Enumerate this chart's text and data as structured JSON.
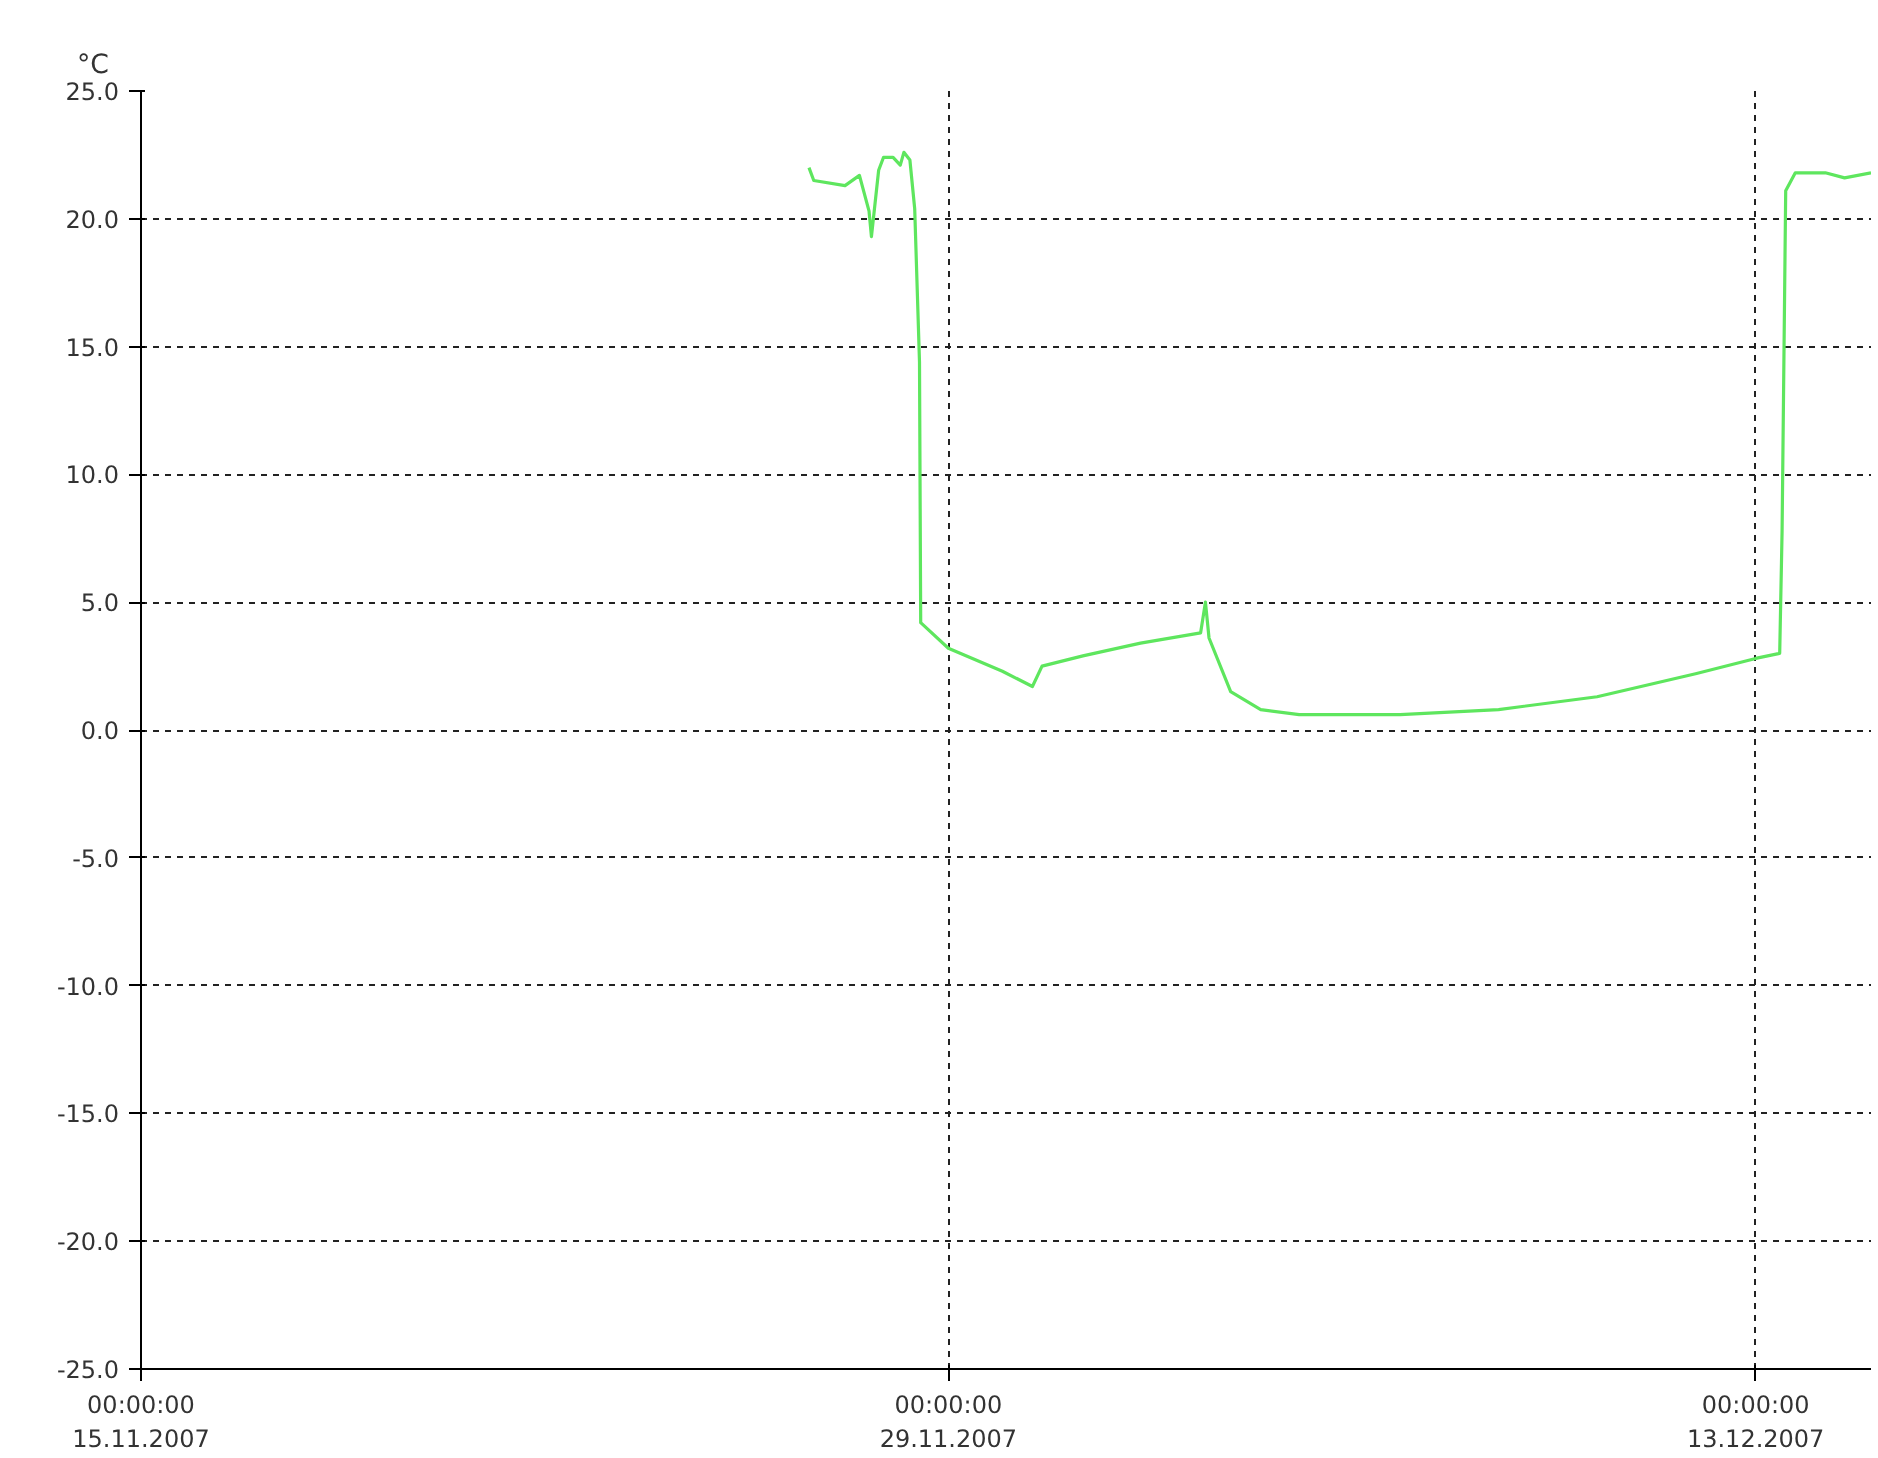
{
  "chart_data": {
    "type": "line",
    "ylabel": "°C",
    "x": [
      "2007-11-26T14:00",
      "2007-11-26T16:00",
      "2007-11-27T05:00",
      "2007-11-27T11:00",
      "2007-11-27T15:00",
      "2007-11-27T16:00",
      "2007-11-27T19:00",
      "2007-11-27T21:00",
      "2007-11-28T01:00",
      "2007-11-28T04:00",
      "2007-11-28T05:30",
      "2007-11-28T08:00",
      "2007-11-28T10:00",
      "2007-11-28T12:00",
      "2007-11-28T12:30",
      "2007-11-29T00:00",
      "2007-11-29T22:30",
      "2007-11-30T11:00",
      "2007-11-30T15:00",
      "2007-12-01T08:00",
      "2007-12-02T08:00",
      "2007-12-03T09:00",
      "2007-12-03T11:00",
      "2007-12-03T12:30",
      "2007-12-03T21:30",
      "2007-12-04T10:00",
      "2007-12-05T02:00",
      "2007-12-06T20:00",
      "2007-12-08T13:00",
      "2007-12-10T06:00",
      "2007-12-11T23:00",
      "2007-12-13T00:00",
      "2007-12-13T10:00",
      "2007-12-13T11:00",
      "2007-12-13T12:30",
      "2007-12-13T16:30",
      "2007-12-14T05:00",
      "2007-12-14T13:00",
      "2007-12-15T00:00"
    ],
    "series": [
      {
        "color": "#5ee65e",
        "values": [
          22.0,
          21.5,
          21.3,
          21.7,
          20.3,
          19.3,
          21.9,
          22.4,
          22.4,
          22.1,
          22.6,
          22.3,
          20.4,
          14.4,
          4.2,
          3.2,
          2.3,
          1.7,
          2.5,
          2.9,
          3.4,
          3.8,
          5.0,
          3.6,
          1.5,
          0.8,
          0.6,
          0.6,
          0.8,
          1.3,
          2.2,
          2.8,
          3.0,
          7.8,
          21.1,
          21.8,
          21.8,
          21.6,
          21.8
        ]
      }
    ],
    "xlim": [
      "2007-11-15",
      "2007-12-15"
    ],
    "xticks": [
      {
        "value": "2007-11-15",
        "label": "00:00:00\n15.11.2007"
      },
      {
        "value": "2007-11-29",
        "label": "00:00:00\n29.11.2007"
      },
      {
        "value": "2007-12-13",
        "label": "00:00:00\n13.12.2007"
      }
    ],
    "ylim": [
      -25,
      25
    ],
    "yticks": [
      {
        "value": -25,
        "label": "-25.0"
      },
      {
        "value": -20,
        "label": "-20.0"
      },
      {
        "value": -15,
        "label": "-15.0"
      },
      {
        "value": -10,
        "label": "-10.0"
      },
      {
        "value": -5,
        "label": "-5.0"
      },
      {
        "value": 0,
        "label": "0.0"
      },
      {
        "value": 5,
        "label": "5.0"
      },
      {
        "value": 10,
        "label": "10.0"
      },
      {
        "value": 15,
        "label": "15.0"
      },
      {
        "value": 20,
        "label": "20.0"
      },
      {
        "value": 25,
        "label": "25.0"
      }
    ],
    "grid": true,
    "marker": "none",
    "line_style": "solid"
  }
}
